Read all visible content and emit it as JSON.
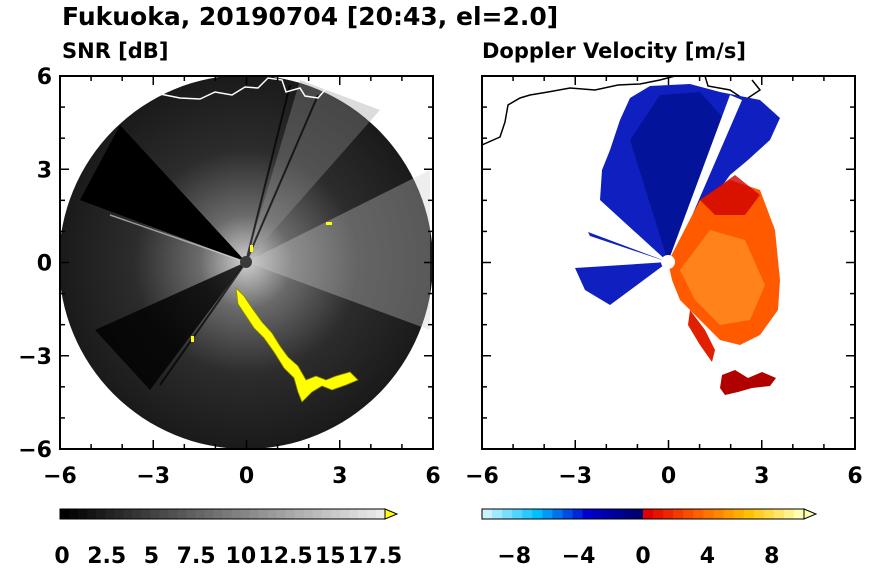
{
  "title": "Fukuoka, 20190704 [20:43, el=2.0]",
  "chart_data": [
    {
      "type": "heatmap",
      "title": "SNR [dB]",
      "xlim": [
        -6,
        6
      ],
      "ylim": [
        -6,
        6
      ],
      "x_ticks": [
        "−6",
        "−3",
        "0",
        "3",
        "6"
      ],
      "y_ticks": [
        "6",
        "3",
        "0",
        "−3",
        "−6"
      ],
      "colorbar": {
        "range": [
          0,
          17.5
        ],
        "extend": "max",
        "ticks": [
          "0",
          "2.5",
          "5",
          "7.5",
          "10",
          "12.5",
          "15",
          "17.5"
        ],
        "colors": [
          "#000000",
          "#ffffff",
          "#ffff00"
        ]
      },
      "features": [
        {
          "name": "bright echo band",
          "color": "#ffff00"
        }
      ]
    },
    {
      "type": "heatmap",
      "title": "Doppler Velocity [m/s]",
      "xlim": [
        -6,
        6
      ],
      "ylim": [
        -6,
        6
      ],
      "x_ticks": [
        "−6",
        "−3",
        "0",
        "3",
        "6"
      ],
      "y_ticks": [
        "6",
        "3",
        "0",
        "−3",
        "−6"
      ],
      "colorbar": {
        "range": [
          -10,
          10
        ],
        "extend": "both",
        "ticks": [
          "−8",
          "−4",
          "0",
          "4",
          "8"
        ],
        "colors": [
          "#c8f4ff",
          "#00c0ff",
          "#0000d0",
          "#000070",
          "#e00000",
          "#ff6000",
          "#ffc000",
          "#ffffb0"
        ]
      }
    }
  ]
}
